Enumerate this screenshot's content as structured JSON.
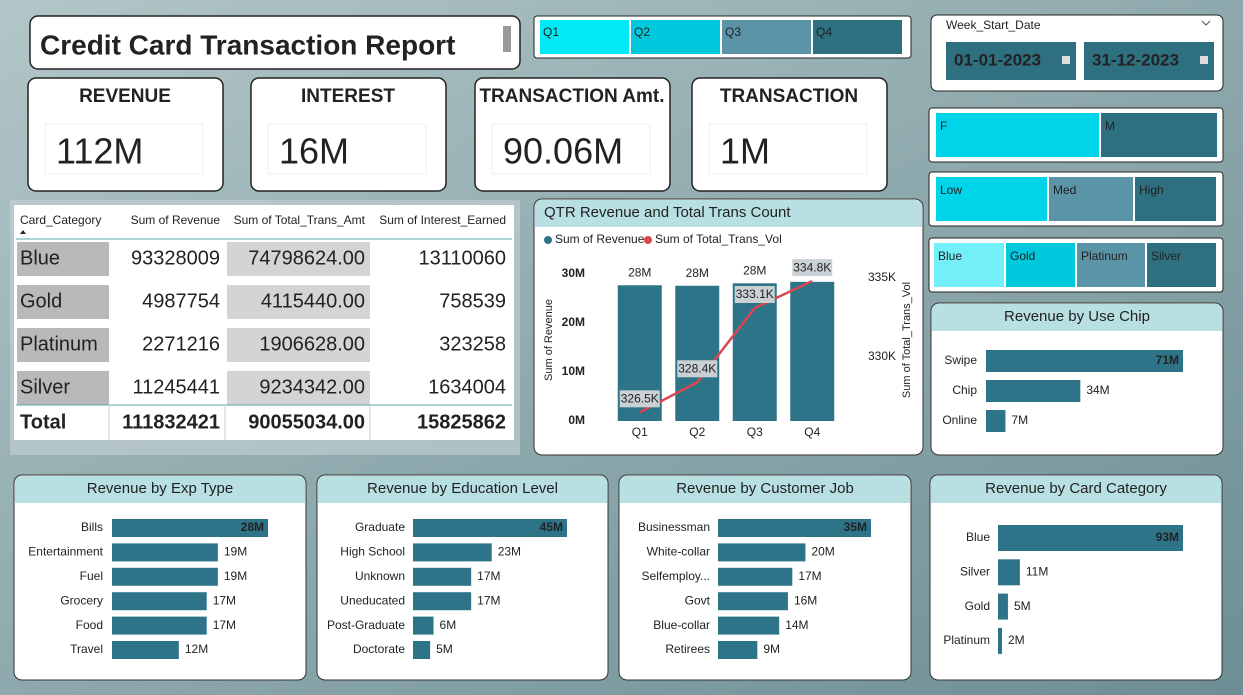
{
  "title": "Credit Card Transaction Report",
  "quarters": [
    "Q1",
    "Q2",
    "Q3",
    "Q4"
  ],
  "date_slicer": {
    "label": "Week_Start_Date",
    "start": "01-01-2023",
    "end": "31-12-2023"
  },
  "gender": [
    "F",
    "M"
  ],
  "income": [
    "Low",
    "Med",
    "High"
  ],
  "card_slicer": [
    "Blue",
    "Gold",
    "Platinum",
    "Silver"
  ],
  "kpis": [
    {
      "label": "REVENUE",
      "value": "112M"
    },
    {
      "label": "INTEREST",
      "value": "16M"
    },
    {
      "label": "TRANSACTION Amt.",
      "value": "90.06M"
    },
    {
      "label": "TRANSACTION",
      "value": "1M"
    }
  ],
  "table": {
    "columns": [
      "Card_Category",
      "Sum of Revenue",
      "Sum of Total_Trans_Amt",
      "Sum of Interest_Earned"
    ],
    "rows": [
      [
        "Blue",
        "93328009",
        "74798624.00",
        "13110060"
      ],
      [
        "Gold",
        "4987754",
        "4115440.00",
        "758539"
      ],
      [
        "Platinum",
        "2271216",
        "1906628.00",
        "323258"
      ],
      [
        "Silver",
        "11245441",
        "9234342.00",
        "1634004"
      ]
    ],
    "total": [
      "Total",
      "111832421",
      "90055034.00",
      "15825862"
    ]
  },
  "chart_data": [
    {
      "type": "combo",
      "title": "QTR Revenue and Total Trans Count",
      "categories": [
        "Q1",
        "Q2",
        "Q3",
        "Q4"
      ],
      "ylabel": "Sum of Revenue",
      "y2label": "Sum of Total_Trans_Vol",
      "ylim": [
        0,
        30000000
      ],
      "yticks": [
        {
          "value": 0,
          "label": "0M"
        },
        {
          "value": 10000000,
          "label": "10M"
        },
        {
          "value": 20000000,
          "label": "20M"
        },
        {
          "value": 30000000,
          "label": "30M"
        }
      ],
      "y2lim": [
        325950,
        335250
      ],
      "y2ticks": [
        {
          "value": 330000,
          "label": "330K"
        },
        {
          "value": 335000,
          "label": "335K"
        }
      ],
      "series": [
        {
          "name": "Sum of Revenue",
          "color": "#2e7489",
          "type": "bar",
          "values": [
            27700000,
            27600000,
            28100000,
            28400000
          ],
          "value_labels": [
            "28M",
            "28M",
            "28M",
            "28M"
          ]
        },
        {
          "name": "Sum of Total_Trans_Vol",
          "color": "#d9464f",
          "type": "line",
          "axis": "y2",
          "values": [
            326500,
            328400,
            333100,
            334800
          ],
          "value_labels": [
            "326.5K",
            "328.4K",
            "333.1K",
            "334.8K"
          ]
        }
      ]
    },
    {
      "type": "hbar",
      "title": "Revenue by Use Chip",
      "color": "#2e7489",
      "categories": [
        "Swipe",
        "Chip",
        "Online"
      ],
      "values": [
        71,
        34,
        7
      ],
      "value_labels": [
        "71M",
        "34M",
        "7M"
      ]
    },
    {
      "type": "hbar",
      "title": "Revenue by Exp Type",
      "color": "#2e7489",
      "categories": [
        "Bills",
        "Entertainment",
        "Fuel",
        "Grocery",
        "Food",
        "Travel"
      ],
      "values": [
        28,
        19,
        19,
        17,
        17,
        12
      ],
      "value_labels": [
        "28M",
        "19M",
        "19M",
        "17M",
        "17M",
        "12M"
      ]
    },
    {
      "type": "hbar",
      "title": "Revenue by Education Level",
      "color": "#2e7489",
      "categories": [
        "Graduate",
        "High School",
        "Unknown",
        "Uneducated",
        "Post-Graduate",
        "Doctorate"
      ],
      "values": [
        45,
        23,
        17,
        17,
        6,
        5
      ],
      "value_labels": [
        "45M",
        "23M",
        "17M",
        "17M",
        "6M",
        "5M"
      ]
    },
    {
      "type": "hbar",
      "title": "Revenue by Customer Job",
      "color": "#2e7489",
      "categories": [
        "Businessman",
        "White-collar",
        "Selfemploy...",
        "Govt",
        "Blue-collar",
        "Retirees"
      ],
      "values": [
        35,
        20,
        17,
        16,
        14,
        9
      ],
      "value_labels": [
        "35M",
        "20M",
        "17M",
        "16M",
        "14M",
        "9M"
      ]
    },
    {
      "type": "hbar",
      "title": "Revenue by Card Category",
      "color": "#2e7489",
      "categories": [
        "Blue",
        "Silver",
        "Gold",
        "Platinum"
      ],
      "values": [
        93,
        11,
        5,
        2
      ],
      "value_labels": [
        "93M",
        "11M",
        "5M",
        "2M"
      ]
    }
  ]
}
